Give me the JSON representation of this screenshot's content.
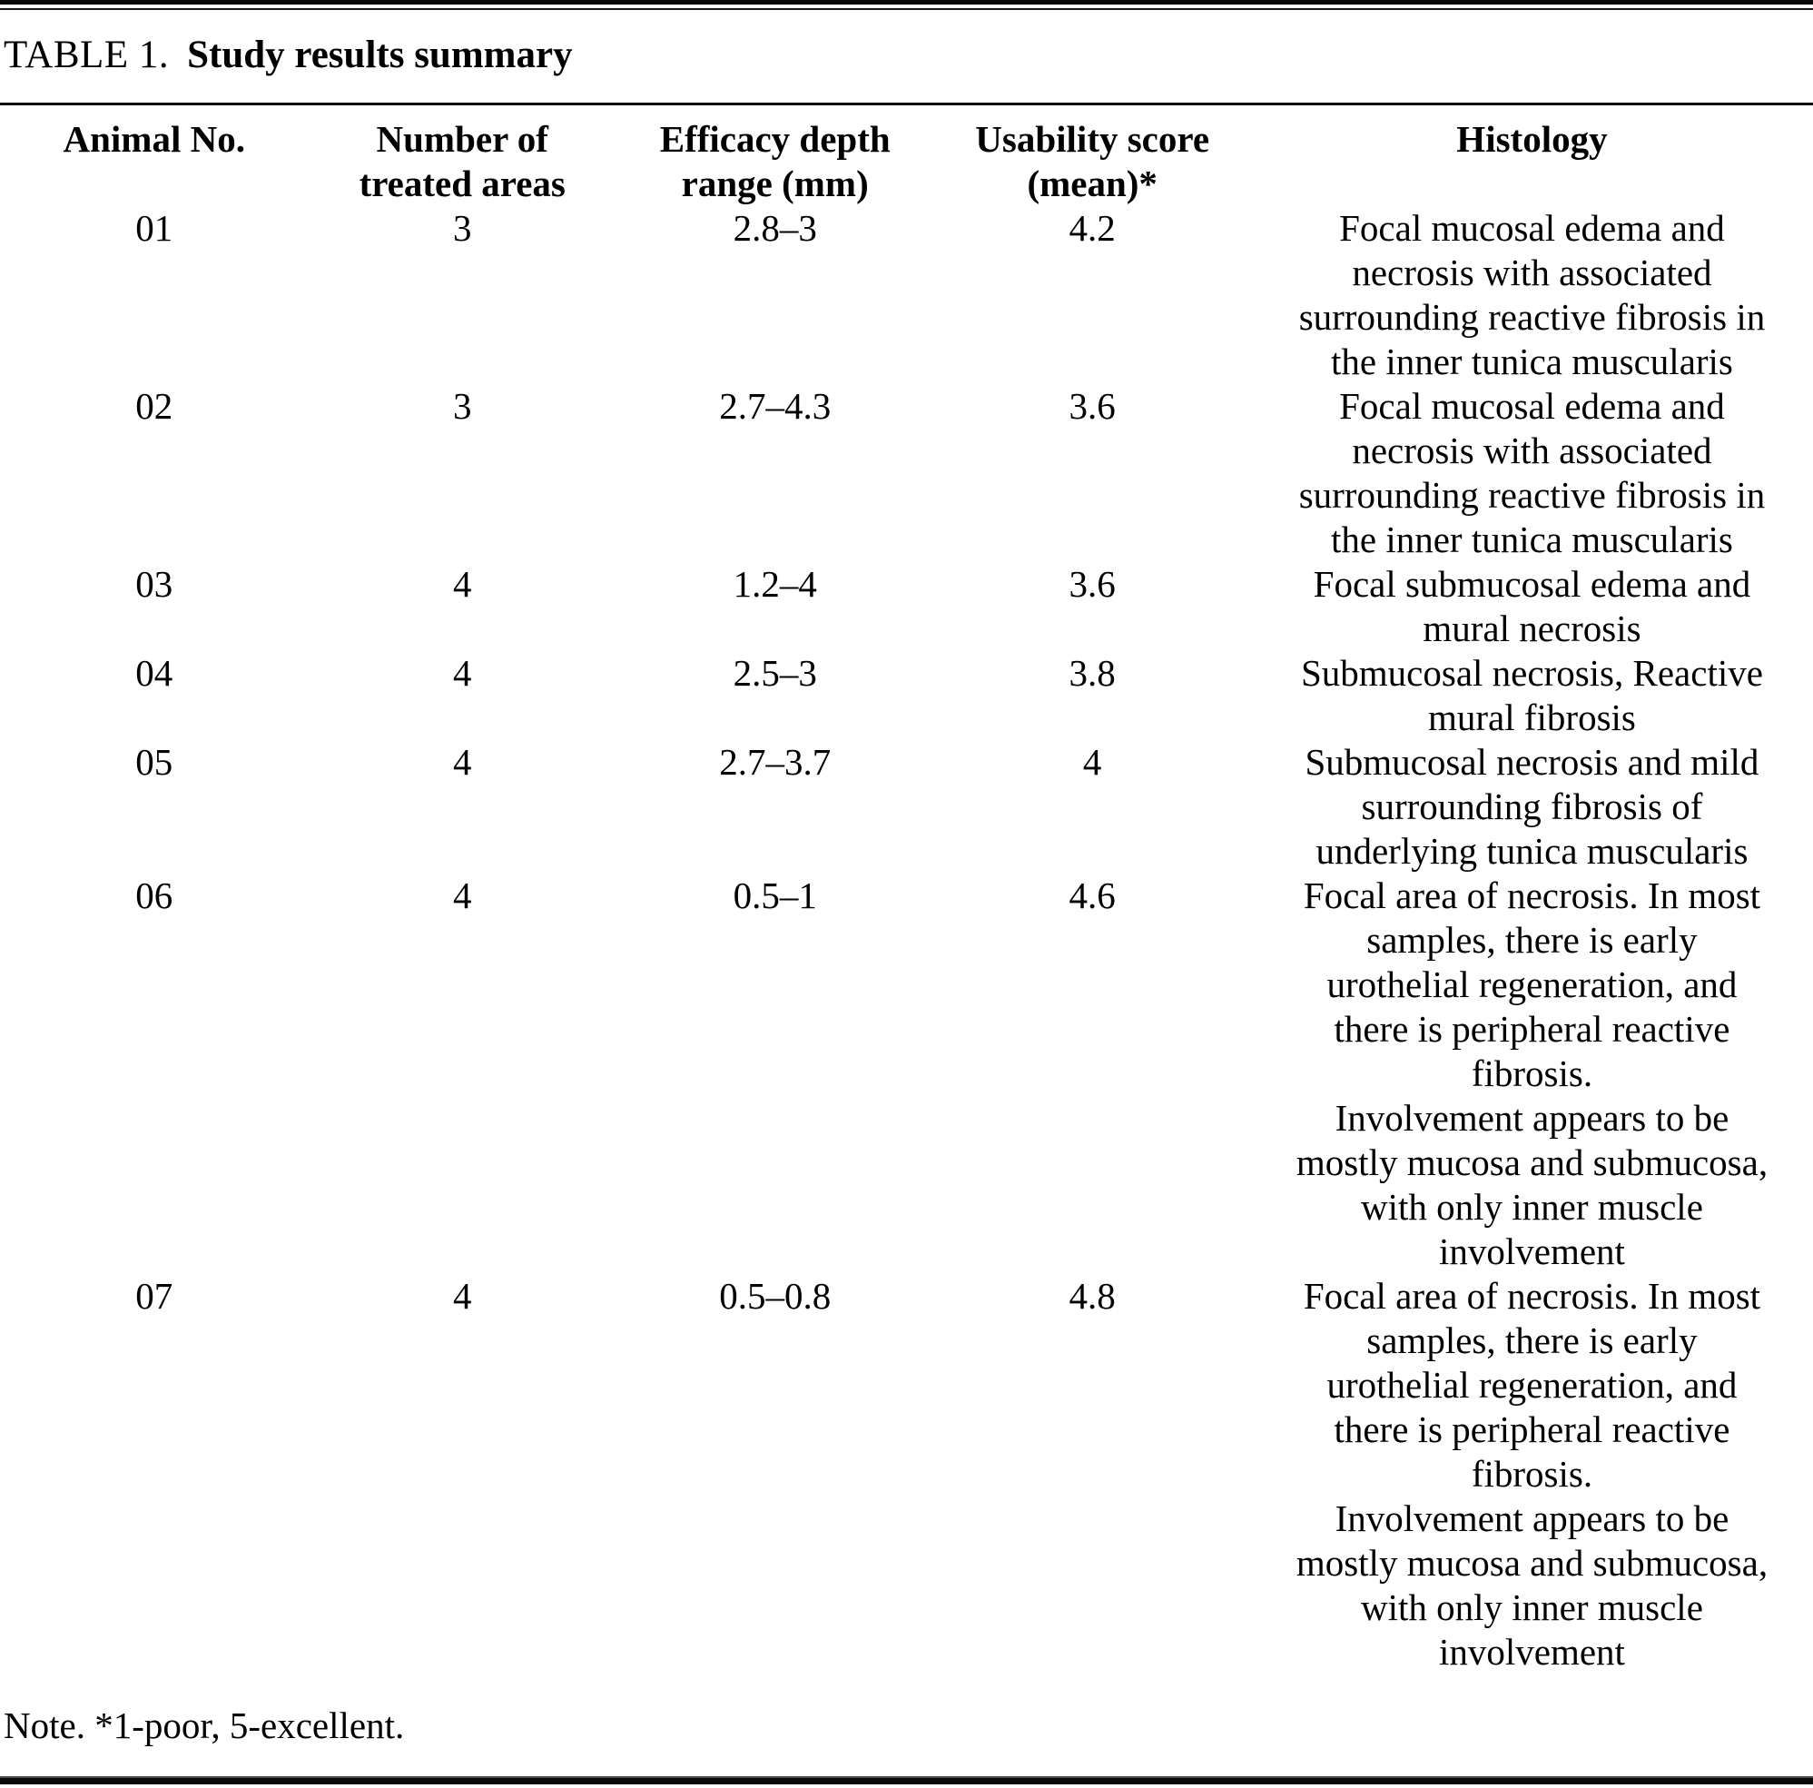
{
  "title": {
    "table_label": "TABLE 1.",
    "title_text": "Study results summary"
  },
  "table": {
    "columns": [
      {
        "label": "Animal No."
      },
      {
        "label": "Number of treated areas",
        "lines": [
          "Number of",
          "treated areas"
        ]
      },
      {
        "label": "Efficacy depth range (mm)",
        "lines": [
          "Efficacy depth",
          "range (mm)"
        ]
      },
      {
        "label": "Usability score (mean)*",
        "lines": [
          "Usability score",
          "(mean)*"
        ]
      },
      {
        "label": "Histology"
      }
    ],
    "rows": [
      {
        "animal_no": "01",
        "treated_areas": "3",
        "efficacy_depth_range_mm": "2.8–3",
        "usability_score_mean": "4.2",
        "histology_lines": [
          "Focal mucosal edema and",
          "necrosis with associated",
          "surrounding reactive fibrosis in",
          "the inner tunica muscularis"
        ]
      },
      {
        "animal_no": "02",
        "treated_areas": "3",
        "efficacy_depth_range_mm": "2.7–4.3",
        "usability_score_mean": "3.6",
        "histology_lines": [
          "Focal mucosal edema and",
          "necrosis with associated",
          "surrounding reactive fibrosis in",
          "the inner tunica muscularis"
        ]
      },
      {
        "animal_no": "03",
        "treated_areas": "4",
        "efficacy_depth_range_mm": "1.2–4",
        "usability_score_mean": "3.6",
        "histology_lines": [
          "Focal submucosal edema and",
          "mural necrosis"
        ]
      },
      {
        "animal_no": "04",
        "treated_areas": "4",
        "efficacy_depth_range_mm": "2.5–3",
        "usability_score_mean": "3.8",
        "histology_lines": [
          "Submucosal necrosis, Reactive",
          "mural fibrosis"
        ]
      },
      {
        "animal_no": "05",
        "treated_areas": "4",
        "efficacy_depth_range_mm": "2.7–3.7",
        "usability_score_mean": "4",
        "histology_lines": [
          "Submucosal necrosis and mild",
          "surrounding fibrosis of",
          "underlying tunica muscularis"
        ]
      },
      {
        "animal_no": "06",
        "treated_areas": "4",
        "efficacy_depth_range_mm": "0.5–1",
        "usability_score_mean": "4.6",
        "histology_lines": [
          "Focal area of necrosis. In most",
          "samples, there is early",
          "urothelial regeneration, and",
          "there is peripheral reactive",
          "fibrosis.",
          "Involvement appears to be",
          "mostly mucosa and submucosa,",
          "with only inner muscle",
          "involvement"
        ]
      },
      {
        "animal_no": "07",
        "treated_areas": "4",
        "efficacy_depth_range_mm": "0.5–0.8",
        "usability_score_mean": "4.8",
        "histology_lines": [
          "Focal area of necrosis. In most",
          "samples, there is early",
          "urothelial regeneration, and",
          "there is peripheral reactive",
          "fibrosis.",
          "Involvement appears to be",
          "mostly mucosa and submucosa,",
          "with only inner muscle",
          "involvement"
        ]
      }
    ]
  },
  "note": "Note. *1-poor, 5-excellent."
}
